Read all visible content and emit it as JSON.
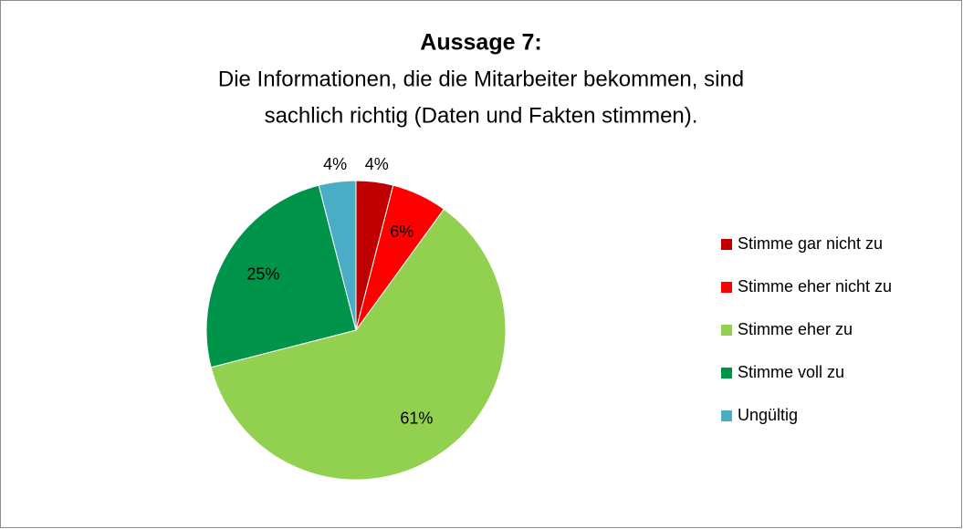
{
  "chart_data": {
    "type": "pie",
    "title": "Aussage 7:",
    "subtitle": [
      "Die Informationen, die die Mitarbeiter bekommen, sind",
      "sachlich richtig (Daten und Fakten stimmen)."
    ],
    "categories": [
      "Stimme gar nicht zu",
      "Stimme eher nicht zu",
      "Stimme eher zu",
      "Stimme voll zu",
      "Ungültig"
    ],
    "values": [
      4,
      6,
      61,
      25,
      4
    ],
    "value_labels": [
      "4%",
      "6%",
      "61%",
      "25%",
      "4%"
    ],
    "colors": [
      "#c00000",
      "#ff0000",
      "#92d050",
      "#00944a",
      "#4bacc6"
    ],
    "legend": "right"
  }
}
